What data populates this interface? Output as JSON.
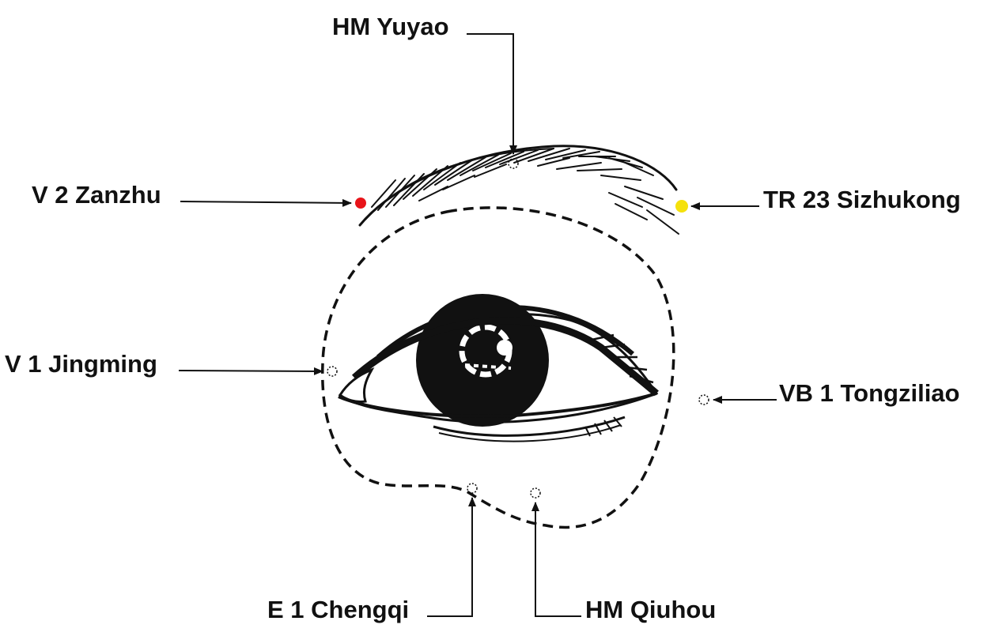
{
  "labels": {
    "hm_yuyao": "HM Yuyao",
    "v2_zanzhu": "V 2 Zanzhu",
    "tr23_sizhukong": "TR 23 Sizhukong",
    "v1_jingming": "V 1 Jingming",
    "vb1_tongziliao": "VB 1 Tongziliao",
    "e1_chengqi": "E 1 Chengqi",
    "hm_qiuhou": "HM Qiuhou"
  },
  "colors": {
    "ink": "#111111",
    "point_zanzhu": "#e8141a",
    "point_sizhukong": "#f5e10c",
    "background": "#ffffff"
  }
}
